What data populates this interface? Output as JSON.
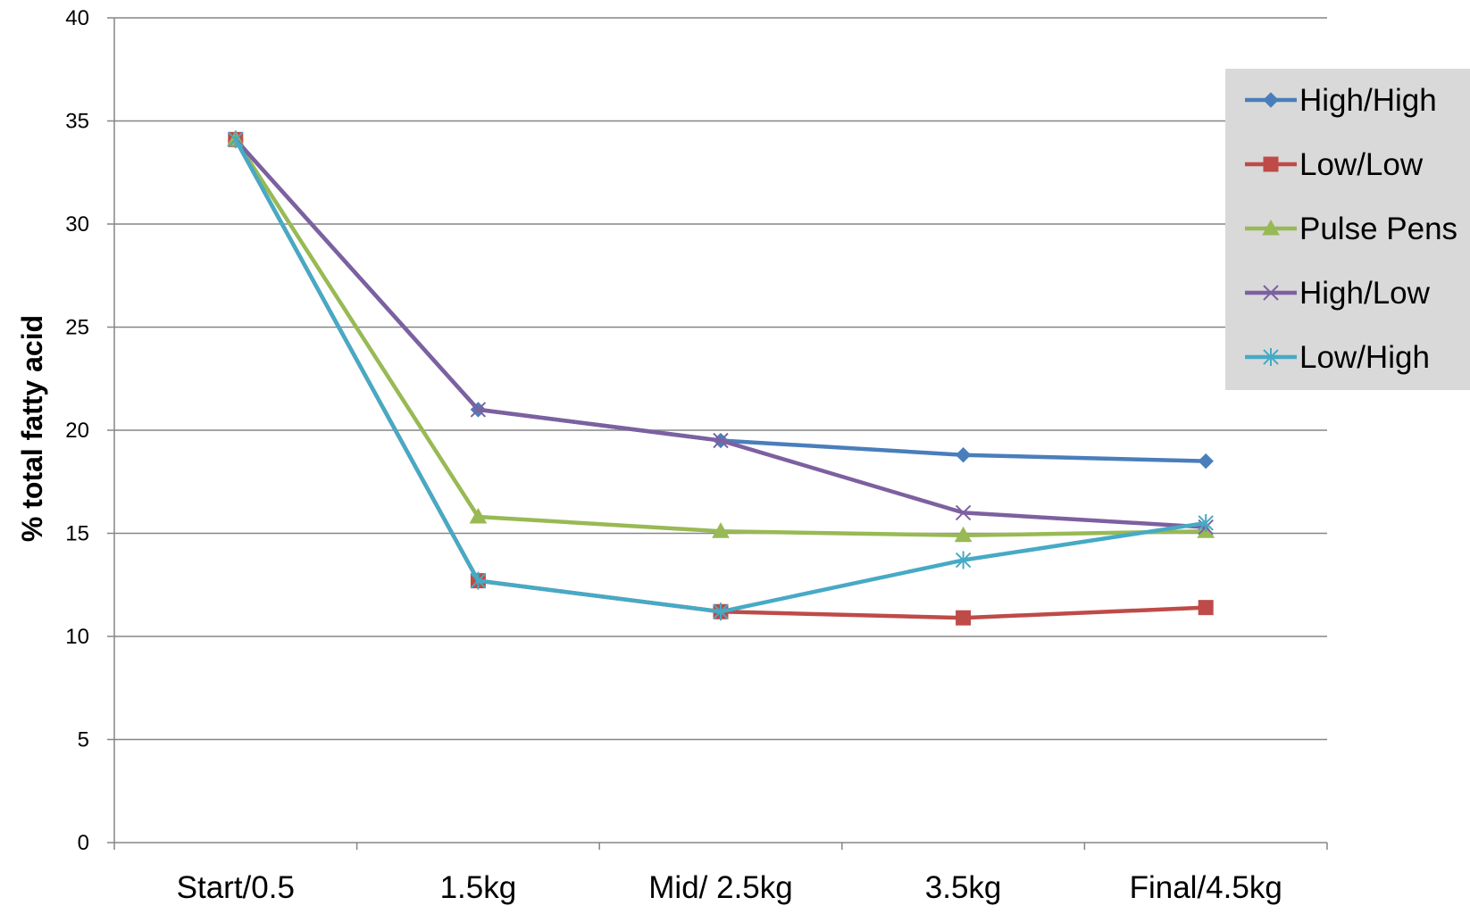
{
  "chart_data": {
    "type": "line",
    "title": "",
    "xlabel": "",
    "ylabel": "% total fatty acid",
    "categories": [
      "Start/0.5",
      "1.5kg",
      "Mid/ 2.5kg",
      "3.5kg",
      "Final/4.5kg"
    ],
    "ylim": [
      0,
      40
    ],
    "yticks": [
      0,
      5,
      10,
      15,
      20,
      25,
      30,
      35,
      40
    ],
    "grid": true,
    "legend_position": "right",
    "series": [
      {
        "name": "High/High",
        "color": "#4a7ebb",
        "marker": "diamond",
        "values": [
          34.1,
          21.0,
          19.5,
          18.8,
          18.5
        ]
      },
      {
        "name": "Low/Low",
        "color": "#be4b48",
        "marker": "square",
        "values": [
          34.1,
          12.7,
          11.2,
          10.9,
          11.4
        ]
      },
      {
        "name": "Pulse Pens",
        "color": "#98b954",
        "marker": "triangle",
        "values": [
          34.1,
          15.8,
          15.1,
          14.9,
          15.1
        ]
      },
      {
        "name": "High/Low",
        "color": "#7d60a0",
        "marker": "x",
        "values": [
          34.1,
          21.0,
          19.5,
          16.0,
          15.3
        ]
      },
      {
        "name": "Low/High",
        "color": "#46aac5",
        "marker": "star",
        "values": [
          34.1,
          12.7,
          11.2,
          13.7,
          15.5
        ]
      }
    ]
  }
}
